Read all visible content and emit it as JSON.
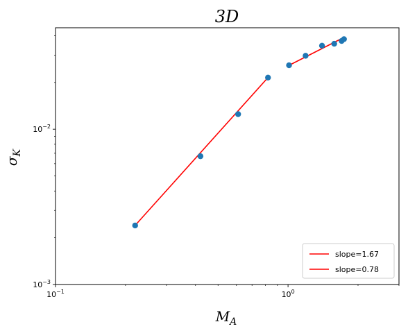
{
  "chart_data": {
    "type": "scatter",
    "title": "3D",
    "xlabel_main": "M",
    "xlabel_sub": "A",
    "ylabel_main": "σ",
    "ylabel_sub": "K",
    "xscale": "log",
    "yscale": "log",
    "xlim": [
      0.1,
      3.0
    ],
    "ylim": [
      0.001,
      0.045
    ],
    "x_ticks": [
      {
        "value": 0.1,
        "base": "10",
        "exp": "−1"
      },
      {
        "value": 1.0,
        "base": "10",
        "exp": "0"
      }
    ],
    "y_ticks": [
      {
        "value": 0.001,
        "base": "10",
        "exp": "−3"
      },
      {
        "value": 0.01,
        "base": "10",
        "exp": "−2"
      }
    ],
    "points": {
      "color": "#1f77b4",
      "x": [
        0.22,
        0.42,
        0.61,
        0.82,
        1.01,
        1.19,
        1.4,
        1.58,
        1.7,
        1.74
      ],
      "y": [
        0.0024,
        0.0067,
        0.0125,
        0.0215,
        0.0258,
        0.0297,
        0.0345,
        0.0355,
        0.037,
        0.038
      ]
    },
    "series": [
      {
        "name": "slope=1.67",
        "color": "#ff0000",
        "x": [
          0.22,
          0.82
        ],
        "y": [
          0.0024,
          0.0215
        ]
      },
      {
        "name": "slope=0.78",
        "color": "#ff0000",
        "x": [
          1.01,
          1.74
        ],
        "y": [
          0.0258,
          0.039
        ]
      }
    ],
    "legend": {
      "position": "lower-right"
    },
    "grid": false
  }
}
